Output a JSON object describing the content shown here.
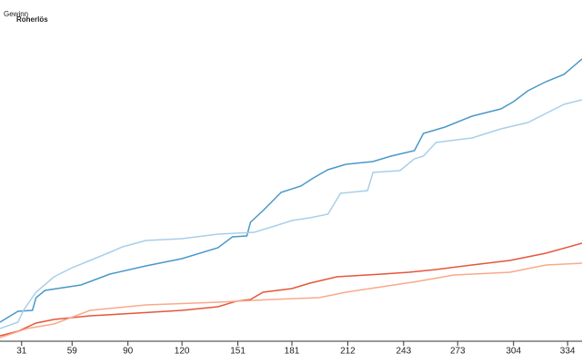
{
  "chart_data": {
    "type": "line",
    "xlim": [
      19,
      342
    ],
    "ylim": [
      0,
      375
    ],
    "xticks": [
      31,
      59,
      90,
      120,
      151,
      181,
      212,
      243,
      273,
      304,
      334
    ],
    "series": [
      {
        "name": "Roherlös",
        "color": "#4a98c9",
        "x": [
          19,
          29,
          37,
          39,
          44,
          64,
          80,
          100,
          120,
          140,
          148,
          156,
          158,
          165,
          175,
          186,
          193,
          201,
          211,
          226,
          236,
          249,
          254,
          266,
          281,
          297,
          304,
          312,
          322,
          332,
          342
        ],
        "values": [
          20,
          32,
          33,
          47,
          55,
          61,
          73,
          82,
          90,
          102,
          114,
          115,
          130,
          143,
          163,
          170,
          179,
          188,
          194,
          197,
          203,
          209,
          228,
          235,
          247,
          255,
          263,
          275,
          285,
          293,
          310
        ]
      },
      {
        "color": "#a9cfe8",
        "x": [
          19,
          29,
          32,
          39,
          49,
          59,
          69,
          80,
          87,
          100,
          120,
          140,
          160,
          170,
          181,
          191,
          201,
          208,
          223,
          226,
          241,
          249,
          254,
          261,
          281,
          297,
          312,
          322,
          332,
          342
        ],
        "values": [
          13,
          20,
          33,
          53,
          70,
          80,
          88,
          97,
          103,
          110,
          112,
          117,
          119,
          125,
          132,
          135,
          139,
          162,
          165,
          185,
          187,
          200,
          203,
          218,
          223,
          233,
          240,
          250,
          260,
          265
        ]
      },
      {
        "name": "Gewinn",
        "color": "#e5563a",
        "x": [
          19,
          29,
          39,
          49,
          69,
          95,
          120,
          140,
          150,
          158,
          165,
          181,
          191,
          206,
          231,
          246,
          261,
          281,
          302,
          322,
          342
        ],
        "values": [
          5,
          10,
          19,
          23,
          27,
          30,
          33,
          37,
          43,
          45,
          53,
          57,
          63,
          70,
          73,
          75,
          78,
          83,
          88,
          96,
          107
        ]
      },
      {
        "color": "#f9a98a",
        "x": [
          19,
          34,
          49,
          69,
          100,
          140,
          170,
          196,
          211,
          231,
          251,
          271,
          302,
          322,
          342
        ],
        "values": [
          3,
          13,
          18,
          33,
          39,
          42,
          45,
          47,
          53,
          59,
          65,
          72,
          75,
          83,
          85
        ]
      }
    ]
  }
}
